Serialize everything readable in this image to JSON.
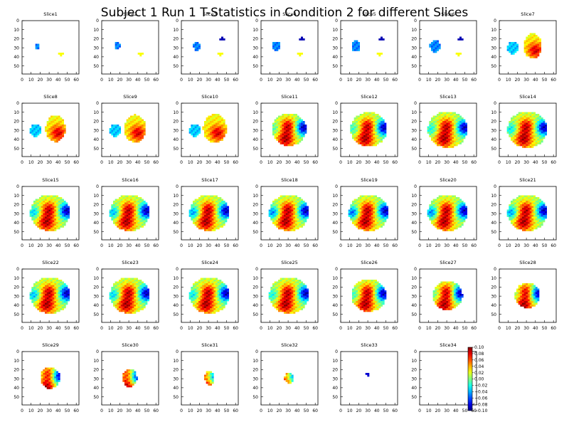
{
  "figure": {
    "title": "Subject 1 Run 1 T-Statistics in Condition 2 for different Slices"
  },
  "chart_data": {
    "type": "heatmap",
    "title": "Subject 1 Run 1 T-Statistics in Condition 2 for different Slices",
    "grid": false,
    "xlim": [
      0,
      63
    ],
    "ylim": [
      59,
      0
    ],
    "x_ticks": [
      "0",
      "10",
      "20",
      "30",
      "40",
      "50",
      "60"
    ],
    "y_ticks": [
      "0",
      "10",
      "20",
      "30",
      "40",
      "50"
    ],
    "colormap": "jet",
    "colorbar": {
      "vmin": -0.1,
      "vmax": 0.1,
      "ticks": [
        "0.10",
        "0.08",
        "0.06",
        "0.04",
        "0.02",
        "0.00",
        "−0.02",
        "−0.04",
        "−0.06",
        "−0.08",
        "−0.10"
      ],
      "placement": "right of Slice34"
    },
    "panels": [
      {
        "title": "Slice1"
      },
      {
        "title": "Slice2"
      },
      {
        "title": "Slice3"
      },
      {
        "title": "Slice4"
      },
      {
        "title": "Slice5"
      },
      {
        "title": "Slice6"
      },
      {
        "title": "Slice7"
      },
      {
        "title": "Slice8"
      },
      {
        "title": "Slice9"
      },
      {
        "title": "Slice10"
      },
      {
        "title": "Slice11"
      },
      {
        "title": "Slice12"
      },
      {
        "title": "Slice13"
      },
      {
        "title": "Slice14"
      },
      {
        "title": "Slice15"
      },
      {
        "title": "Slice16"
      },
      {
        "title": "Slice17"
      },
      {
        "title": "Slice18"
      },
      {
        "title": "Slice19"
      },
      {
        "title": "Slice20"
      },
      {
        "title": "Slice21"
      },
      {
        "title": "Slice22"
      },
      {
        "title": "Slice23"
      },
      {
        "title": "Slice24"
      },
      {
        "title": "Slice25"
      },
      {
        "title": "Slice26"
      },
      {
        "title": "Slice27"
      },
      {
        "title": "Slice28"
      },
      {
        "title": "Slice29"
      },
      {
        "title": "Slice30"
      },
      {
        "title": "Slice31"
      },
      {
        "title": "Slice32"
      },
      {
        "title": "Slice33"
      },
      {
        "title": "Slice34"
      }
    ]
  }
}
